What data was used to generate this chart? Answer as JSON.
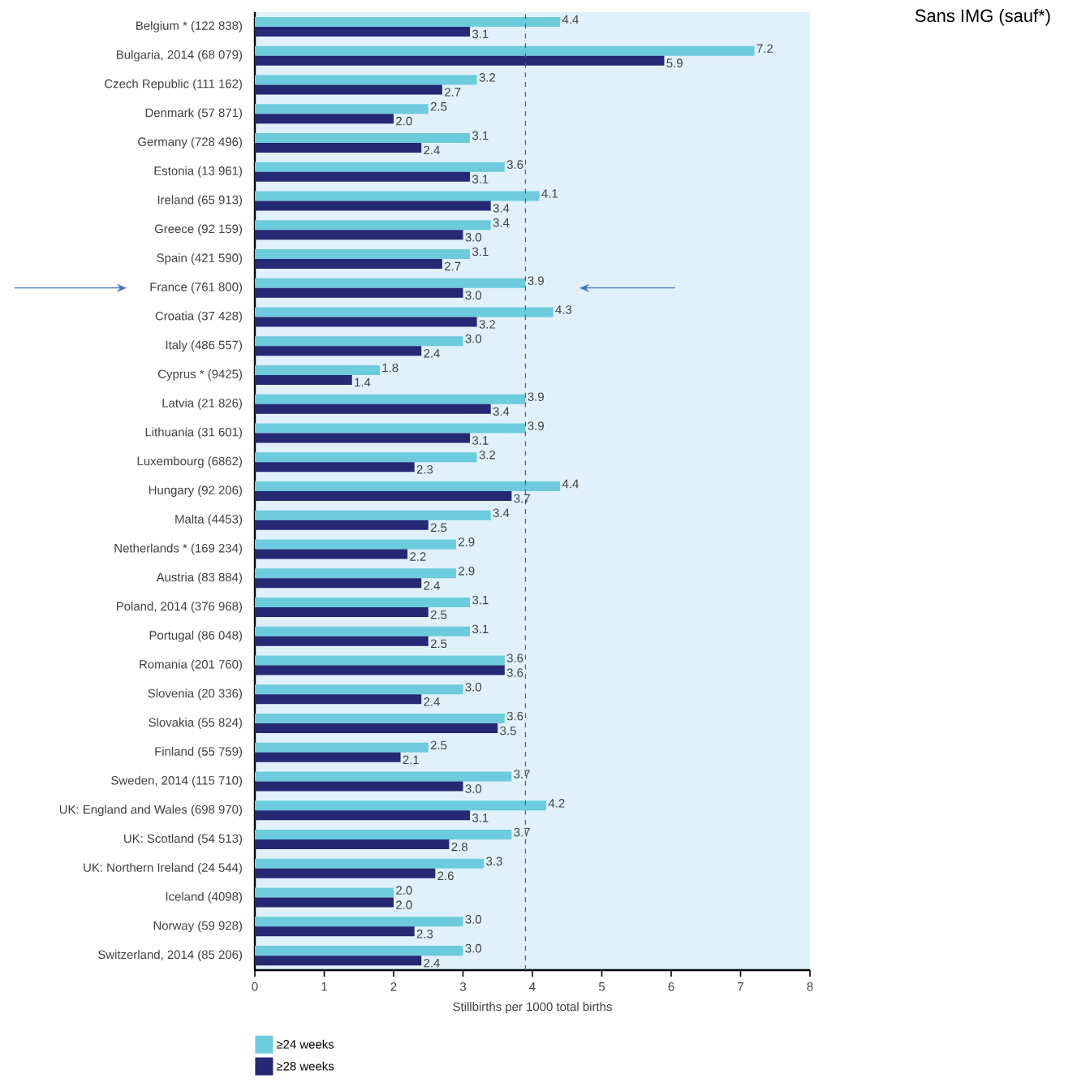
{
  "chart_data": {
    "type": "bar",
    "orientation": "horizontal",
    "xlabel": "Stillbirths per 1000 total births",
    "categories": [
      "Belgium * (122 838)",
      "Bulgaria, 2014 (68 079)",
      "Czech Republic (111 162)",
      "Denmark (57 871)",
      "Germany (728 496)",
      "Estonia (13 961)",
      "Ireland (65 913)",
      "Greece (92 159)",
      "Spain (421 590)",
      "France  (761 800)",
      "Croatia (37 428)",
      "Italy (486 557)",
      "Cyprus * (9425)",
      "Latvia (21 826)",
      "Lithuania (31 601)",
      "Luxembourg (6862)",
      "Hungary (92 206)",
      "Malta (4453)",
      "Netherlands * (169 234)",
      "Austria (83 884)",
      "Poland, 2014 (376 968)",
      "Portugal (86 048)",
      "Romania (201 760)",
      "Slovenia (20 336)",
      "Slovakia (55 824)",
      "Finland (55 759)",
      "Sweden, 2014 (115 710)",
      "UK: England and Wales (698 970)",
      "UK: Scotland (54 513)",
      "UK: Northern Ireland (24 544)",
      "Iceland (4098)",
      "Norway (59 928)",
      "Switzerland, 2014 (85 206)"
    ],
    "series": [
      {
        "name": "≥24 weeks",
        "color": "#6ccbdc",
        "values": [
          4.4,
          7.2,
          3.2,
          2.5,
          3.1,
          3.6,
          4.1,
          3.4,
          3.1,
          3.9,
          4.3,
          3.0,
          1.8,
          3.9,
          3.9,
          3.2,
          4.4,
          3.4,
          2.9,
          2.9,
          3.1,
          3.1,
          3.6,
          3.0,
          3.6,
          2.5,
          3.7,
          4.2,
          3.7,
          3.3,
          2.0,
          3.0,
          3.0
        ],
        "value_labels": [
          "4.4",
          "7.2",
          "3.2",
          "2.5",
          "3.1",
          "3.6",
          "4.1",
          "3.4",
          "3.1",
          "3.9",
          "4.3",
          "3.0",
          "1.8",
          "3.9",
          "3.9",
          "3.2",
          "4.4",
          "3.4",
          "2.9",
          "2.9",
          "3.1",
          "3.1",
          "3.6",
          "3.0",
          "3.6",
          "2.5",
          "3.7",
          "4.2",
          "3.7",
          "3.3",
          "2.0",
          "3.0",
          "3.0"
        ]
      },
      {
        "name": "≥28 weeks",
        "color": "#252873",
        "values": [
          3.1,
          5.9,
          2.7,
          2.0,
          2.4,
          3.1,
          3.4,
          3.0,
          2.7,
          3.0,
          3.2,
          2.4,
          1.4,
          3.4,
          3.1,
          2.3,
          3.7,
          2.5,
          2.2,
          2.4,
          2.5,
          2.5,
          3.6,
          2.4,
          3.5,
          2.1,
          3.0,
          3.1,
          2.8,
          2.6,
          2.0,
          2.3,
          2.4
        ],
        "value_labels": [
          "3.1",
          "5.9",
          "2.7",
          "2.0",
          "2.4",
          "3.1",
          "3.4",
          "3.0",
          "2.7",
          "3.0",
          "3.2",
          "2.4",
          "1.4",
          "3.4",
          "3.1",
          "2.3",
          "3.7",
          "2.5",
          "2.2",
          "2.4",
          "2.5",
          "2.5",
          "3.6",
          "2.4",
          "3.5",
          "2.1",
          "3.0",
          "3.1",
          "2.8",
          "2.6",
          "2.0",
          "2.3",
          "2.4"
        ]
      }
    ],
    "xlim": [
      0,
      8
    ],
    "xticks": [
      0,
      1,
      2,
      3,
      4,
      5,
      6,
      7,
      8
    ],
    "legend": "bottom left",
    "grid": false,
    "ref_lines": [
      {
        "axis": "x",
        "value": 3.9,
        "color": "#e02020",
        "line_style": "dashed"
      }
    ],
    "annotations": [
      "Sans IMG (sauf*)"
    ]
  }
}
